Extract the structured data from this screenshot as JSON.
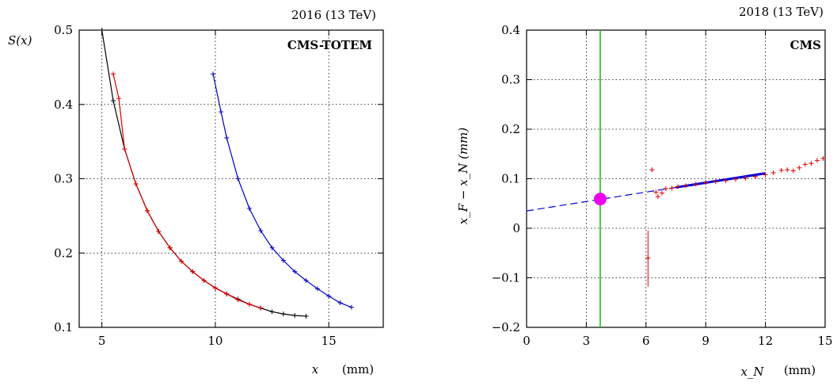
{
  "chart_data": [
    {
      "type": "line",
      "corner_label": "2016 (13 TeV)",
      "badge": "CMS-TOTEM",
      "ylabel": "S(x)",
      "xlabel": "x",
      "xunit": "(mm)",
      "xlim": [
        4,
        17.4
      ],
      "ylim": [
        0.1,
        0.5
      ],
      "xticks": [
        5,
        10,
        15
      ],
      "yticks": [
        0.1,
        0.2,
        0.3,
        0.4,
        0.5
      ],
      "ytick_labels": [
        "0.1",
        "0.2",
        "0.3",
        "0.4",
        "0.5"
      ],
      "grid": true,
      "series": [
        {
          "color": "#000000",
          "x": [
            5.0,
            5.5,
            6.0,
            6.5,
            7.0,
            7.5,
            8.0,
            8.5,
            9.0,
            9.5,
            10.0,
            10.5,
            11.0,
            11.5,
            12.0,
            12.5,
            13.0,
            13.5,
            14.0
          ],
          "y": [
            0.5,
            0.405,
            0.34,
            0.293,
            0.257,
            0.229,
            0.207,
            0.189,
            0.175,
            0.163,
            0.153,
            0.145,
            0.138,
            0.131,
            0.126,
            0.121,
            0.118,
            0.116,
            0.115
          ]
        },
        {
          "color": "#dd0000",
          "x": [
            5.5,
            5.75,
            6.0,
            6.5,
            7.0,
            7.5,
            8.0,
            8.5,
            9.0,
            9.5,
            10.0,
            10.5,
            11.0,
            11.5,
            12.0
          ],
          "y": [
            0.441,
            0.408,
            0.34,
            0.293,
            0.257,
            0.229,
            0.207,
            0.189,
            0.175,
            0.163,
            0.153,
            0.145,
            0.137,
            0.131,
            0.126
          ]
        },
        {
          "color": "#0000cc",
          "x": [
            9.9,
            10.25,
            10.5,
            11.0,
            11.5,
            12.0,
            12.5,
            13.0,
            13.5,
            14.0,
            14.5,
            15.0,
            15.5,
            16.0
          ],
          "y": [
            0.441,
            0.39,
            0.355,
            0.3,
            0.26,
            0.23,
            0.207,
            0.19,
            0.175,
            0.163,
            0.152,
            0.142,
            0.133,
            0.127
          ]
        }
      ]
    },
    {
      "type": "scatter",
      "corner_label": "2018 (13 TeV)",
      "badge": "CMS",
      "ylabel": "x_F − x_N   (mm)",
      "xlabel": "x_N",
      "xunit": "(mm)",
      "xlim": [
        0,
        15
      ],
      "ylim": [
        -0.2,
        0.4
      ],
      "xticks": [
        0,
        3,
        6,
        9,
        12,
        15
      ],
      "yticks": [
        -0.2,
        -0.1,
        0,
        0.1,
        0.2,
        0.3,
        0.4
      ],
      "ytick_labels": [
        "−0.2",
        "−0.1",
        "0",
        "0.1",
        "0.2",
        "0.3",
        "0.4"
      ],
      "grid": true,
      "vertical_line": {
        "x": 3.7,
        "color": "#22bb22"
      },
      "marker": {
        "x": 3.7,
        "y": 0.059,
        "color": "#ee00ee"
      },
      "fit_line": {
        "x": [
          0,
          12
        ],
        "y": [
          0.035,
          0.111
        ],
        "color": "#0000dd"
      },
      "points": {
        "color": "#dd0000",
        "x": [
          6.1,
          6.3,
          6.5,
          6.6,
          6.8,
          7.0,
          7.3,
          7.6,
          8.0,
          8.5,
          9.0,
          9.5,
          10.0,
          10.5,
          11.0,
          11.5,
          12.0,
          12.4,
          12.8,
          13.1,
          13.4,
          13.7,
          14.0,
          14.3,
          14.6,
          14.9
        ],
        "y": [
          -0.06,
          0.118,
          0.073,
          0.064,
          0.071,
          0.08,
          0.081,
          0.084,
          0.086,
          0.089,
          0.092,
          0.094,
          0.096,
          0.099,
          0.101,
          0.104,
          0.108,
          0.112,
          0.117,
          0.118,
          0.116,
          0.122,
          0.129,
          0.131,
          0.137,
          0.141
        ]
      },
      "error_bar": {
        "x": 6.1,
        "ylow": -0.118,
        "yhigh": -0.005
      }
    }
  ]
}
